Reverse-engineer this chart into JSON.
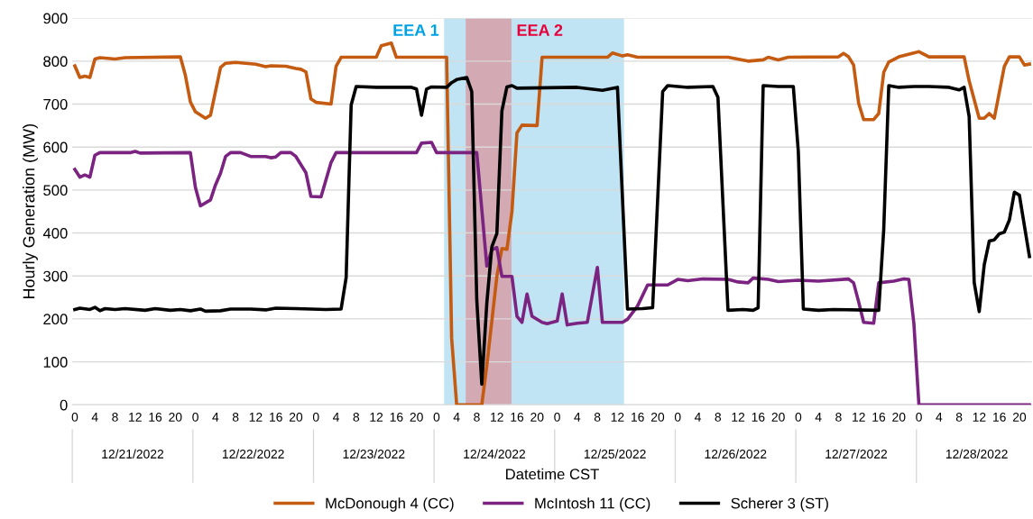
{
  "chart_data": {
    "type": "line",
    "xlabel": "Datetime CST",
    "ylabel": "Hourly Generation (MW)",
    "xlim": [
      "2022-12-20T23:30",
      "2022-12-28T22:30"
    ],
    "ylim": [
      0,
      900
    ],
    "xticks": [
      {
        "value": "2022-12-21T00:00",
        "label": "0"
      },
      {
        "value": "2022-12-21T04:00",
        "label": "4"
      },
      {
        "value": "2022-12-21T08:00",
        "label": "8"
      },
      {
        "value": "2022-12-21T12:00",
        "label": "12"
      },
      {
        "value": "2022-12-21T16:00",
        "label": "16"
      },
      {
        "value": "2022-12-21T20:00",
        "label": "20"
      },
      {
        "value": "2022-12-22T00:00",
        "label": "0"
      },
      {
        "value": "2022-12-22T04:00",
        "label": "4"
      },
      {
        "value": "2022-12-22T08:00",
        "label": "8"
      },
      {
        "value": "2022-12-22T12:00",
        "label": "12"
      },
      {
        "value": "2022-12-22T16:00",
        "label": "16"
      },
      {
        "value": "2022-12-22T20:00",
        "label": "20"
      },
      {
        "value": "2022-12-23T00:00",
        "label": "0"
      },
      {
        "value": "2022-12-23T04:00",
        "label": "4"
      },
      {
        "value": "2022-12-23T08:00",
        "label": "8"
      },
      {
        "value": "2022-12-23T12:00",
        "label": "12"
      },
      {
        "value": "2022-12-23T16:00",
        "label": "16"
      },
      {
        "value": "2022-12-23T20:00",
        "label": "20"
      },
      {
        "value": "2022-12-24T00:00",
        "label": "0"
      },
      {
        "value": "2022-12-24T04:00",
        "label": "4"
      },
      {
        "value": "2022-12-24T08:00",
        "label": "8"
      },
      {
        "value": "2022-12-24T12:00",
        "label": "12"
      },
      {
        "value": "2022-12-24T16:00",
        "label": "16"
      },
      {
        "value": "2022-12-24T20:00",
        "label": "20"
      },
      {
        "value": "2022-12-25T00:00",
        "label": "0"
      },
      {
        "value": "2022-12-25T04:00",
        "label": "4"
      },
      {
        "value": "2022-12-25T08:00",
        "label": "8"
      },
      {
        "value": "2022-12-25T12:00",
        "label": "12"
      },
      {
        "value": "2022-12-25T16:00",
        "label": "16"
      },
      {
        "value": "2022-12-25T20:00",
        "label": "20"
      },
      {
        "value": "2022-12-26T00:00",
        "label": "0"
      },
      {
        "value": "2022-12-26T04:00",
        "label": "4"
      },
      {
        "value": "2022-12-26T08:00",
        "label": "8"
      },
      {
        "value": "2022-12-26T12:00",
        "label": "12"
      },
      {
        "value": "2022-12-26T16:00",
        "label": "16"
      },
      {
        "value": "2022-12-26T20:00",
        "label": "20"
      },
      {
        "value": "2022-12-27T00:00",
        "label": "0"
      },
      {
        "value": "2022-12-27T04:00",
        "label": "4"
      },
      {
        "value": "2022-12-27T08:00",
        "label": "8"
      },
      {
        "value": "2022-12-27T12:00",
        "label": "12"
      },
      {
        "value": "2022-12-27T16:00",
        "label": "16"
      },
      {
        "value": "2022-12-27T20:00",
        "label": "20"
      },
      {
        "value": "2022-12-28T00:00",
        "label": "0"
      },
      {
        "value": "2022-12-28T04:00",
        "label": "4"
      },
      {
        "value": "2022-12-28T08:00",
        "label": "8"
      },
      {
        "value": "2022-12-28T12:00",
        "label": "12"
      },
      {
        "value": "2022-12-28T16:00",
        "label": "16"
      },
      {
        "value": "2022-12-28T20:00",
        "label": "20"
      }
    ],
    "x2lim": [
      "2022-12-20T23:30",
      "2022-12-28T22:30"
    ],
    "x2ticks": [
      {
        "value": "2022-12-21T11:30",
        "label": "12/21/2022"
      },
      {
        "value": "2022-12-22T11:30",
        "label": "12/22/2022"
      },
      {
        "value": "2022-12-23T11:30",
        "label": "12/23/2022"
      },
      {
        "value": "2022-12-24T11:30",
        "label": "12/24/2022"
      },
      {
        "value": "2022-12-25T11:30",
        "label": "12/25/2022"
      },
      {
        "value": "2022-12-26T11:30",
        "label": "12/26/2022"
      },
      {
        "value": "2022-12-27T11:30",
        "label": "12/27/2022"
      },
      {
        "value": "2022-12-28T11:30",
        "label": "12/28/2022"
      }
    ],
    "yticks": [
      0,
      100,
      200,
      300,
      400,
      500,
      600,
      700,
      800,
      900
    ],
    "grid": "y",
    "legend": "bottom",
    "marker": "none",
    "line_style": "solid",
    "bands": [
      {
        "axis": "x",
        "from": "2022-12-24T01:30",
        "to": "2022-12-25T13:18",
        "label": "EEA 1",
        "color": "#c0e4f3"
      },
      {
        "axis": "x",
        "from": "2022-12-24T05:48",
        "to": "2022-12-24T14:54",
        "label": "EEA 2",
        "color": "#d3a9b4"
      }
    ],
    "series": [
      {
        "name": "McDonough 4 (CC)",
        "color": "#c55a11",
        "x": [
          "2022-12-21T00:00",
          "2022-12-21T01:00",
          "2022-12-21T02:00",
          "2022-12-21T03:00",
          "2022-12-21T04:00",
          "2022-12-21T05:00",
          "2022-12-21T08:00",
          "2022-12-21T10:00",
          "2022-12-21T21:00",
          "2022-12-21T22:00",
          "2022-12-21T23:00",
          "2022-12-22T00:00",
          "2022-12-22T02:00",
          "2022-12-22T03:00",
          "2022-12-22T05:00",
          "2022-12-22T06:00",
          "2022-12-22T08:00",
          "2022-12-22T12:00",
          "2022-12-22T14:00",
          "2022-12-22T15:00",
          "2022-12-22T18:00",
          "2022-12-22T20:00",
          "2022-12-22T21:00",
          "2022-12-22T22:00",
          "2022-12-22T23:00",
          "2022-12-23T00:00",
          "2022-12-23T03:00",
          "2022-12-23T04:00",
          "2022-12-23T05:00",
          "2022-12-23T12:00",
          "2022-12-23T13:00",
          "2022-12-23T15:00",
          "2022-12-23T16:00",
          "2022-12-24T02:00",
          "2022-12-24T03:00",
          "2022-12-24T04:00",
          "2022-12-24T09:00",
          "2022-12-24T10:00",
          "2022-12-24T12:00",
          "2022-12-24T13:00",
          "2022-12-24T14:00",
          "2022-12-24T15:00",
          "2022-12-24T16:00",
          "2022-12-24T17:00",
          "2022-12-24T20:00",
          "2022-12-24T21:00",
          "2022-12-25T10:00",
          "2022-12-25T11:00",
          "2022-12-25T13:00",
          "2022-12-25T14:00",
          "2022-12-25T16:00",
          "2022-12-26T10:00",
          "2022-12-26T14:00",
          "2022-12-26T17:00",
          "2022-12-26T18:00",
          "2022-12-26T20:00",
          "2022-12-26T22:00",
          "2022-12-27T08:00",
          "2022-12-27T09:00",
          "2022-12-27T10:00",
          "2022-12-27T11:00",
          "2022-12-27T12:00",
          "2022-12-27T13:00",
          "2022-12-27T15:00",
          "2022-12-27T16:00",
          "2022-12-27T17:00",
          "2022-12-27T18:00",
          "2022-12-27T20:00",
          "2022-12-27T23:00",
          "2022-12-28T00:00",
          "2022-12-28T02:00",
          "2022-12-28T09:00",
          "2022-12-28T10:00",
          "2022-12-28T12:00",
          "2022-12-28T13:00",
          "2022-12-28T14:00",
          "2022-12-28T15:00",
          "2022-12-28T17:00",
          "2022-12-28T18:00",
          "2022-12-28T20:00",
          "2022-12-28T21:00",
          "2022-12-28T22:00"
        ],
        "values": [
          789,
          762,
          765,
          762,
          805,
          808,
          805,
          808,
          810,
          767,
          705,
          682,
          667,
          674,
          785,
          795,
          797,
          793,
          787,
          789,
          788,
          783,
          781,
          775,
          712,
          704,
          700,
          788,
          809,
          809,
          836,
          842,
          809,
          809,
          155,
          0,
          0,
          92,
          299,
          364,
          362,
          450,
          633,
          651,
          650,
          809,
          809,
          819,
          812,
          815,
          809,
          809,
          800,
          803,
          809,
          803,
          809,
          810,
          818,
          810,
          791,
          702,
          664,
          664,
          678,
          774,
          798,
          810,
          819,
          822,
          810,
          810,
          754,
          667,
          667,
          678,
          667,
          788,
          810,
          810,
          791,
          793
        ]
      },
      {
        "name": "McIntosh 11 (CC)",
        "color": "#7b2381",
        "x": [
          "2022-12-21T00:00",
          "2022-12-21T01:00",
          "2022-12-21T02:00",
          "2022-12-21T03:00",
          "2022-12-21T04:00",
          "2022-12-21T05:00",
          "2022-12-21T11:00",
          "2022-12-21T12:00",
          "2022-12-21T13:00",
          "2022-12-21T23:00",
          "2022-12-22T00:00",
          "2022-12-22T01:00",
          "2022-12-22T03:00",
          "2022-12-22T04:00",
          "2022-12-22T05:00",
          "2022-12-22T06:00",
          "2022-12-22T07:00",
          "2022-12-22T09:00",
          "2022-12-22T11:00",
          "2022-12-22T14:00",
          "2022-12-22T15:00",
          "2022-12-22T16:00",
          "2022-12-22T17:00",
          "2022-12-22T19:00",
          "2022-12-22T20:00",
          "2022-12-22T22:00",
          "2022-12-22T23:00",
          "2022-12-23T01:00",
          "2022-12-23T03:00",
          "2022-12-23T04:00",
          "2022-12-23T20:00",
          "2022-12-23T21:00",
          "2022-12-23T23:00",
          "2022-12-24T00:00",
          "2022-12-24T08:00",
          "2022-12-24T10:00",
          "2022-12-24T11:00",
          "2022-12-24T12:00",
          "2022-12-24T13:00",
          "2022-12-24T15:00",
          "2022-12-24T16:00",
          "2022-12-24T17:00",
          "2022-12-24T18:00",
          "2022-12-24T19:00",
          "2022-12-24T21:00",
          "2022-12-24T22:00",
          "2022-12-25T00:00",
          "2022-12-25T01:00",
          "2022-12-25T02:00",
          "2022-12-25T04:00",
          "2022-12-25T06:00",
          "2022-12-25T08:00",
          "2022-12-25T09:00",
          "2022-12-25T13:00",
          "2022-12-25T14:00",
          "2022-12-25T16:00",
          "2022-12-25T18:00",
          "2022-12-25T22:00",
          "2022-12-26T00:00",
          "2022-12-26T02:00",
          "2022-12-26T05:00",
          "2022-12-26T10:00",
          "2022-12-26T12:00",
          "2022-12-26T14:00",
          "2022-12-26T15:00",
          "2022-12-26T18:00",
          "2022-12-26T20:00",
          "2022-12-27T00:00",
          "2022-12-27T04:00",
          "2022-12-27T10:00",
          "2022-12-27T11:00",
          "2022-12-27T12:00",
          "2022-12-27T13:00",
          "2022-12-27T15:00",
          "2022-12-27T16:00",
          "2022-12-27T19:00",
          "2022-12-27T21:00",
          "2022-12-27T22:00",
          "2022-12-27T23:00",
          "2022-12-28T00:00",
          "2022-12-28T22:00"
        ],
        "values": [
          548,
          530,
          535,
          530,
          581,
          587,
          587,
          590,
          586,
          587,
          506,
          463,
          477,
          512,
          539,
          578,
          587,
          587,
          578,
          578,
          575,
          577,
          587,
          587,
          578,
          540,
          485,
          484,
          564,
          587,
          587,
          609,
          611,
          587,
          587,
          323,
          361,
          366,
          299,
          299,
          206,
          192,
          258,
          206,
          192,
          189,
          195,
          258,
          186,
          190,
          192,
          320,
          192,
          192,
          199,
          230,
          279,
          279,
          292,
          289,
          293,
          292,
          286,
          284,
          295,
          292,
          287,
          290,
          288,
          293,
          284,
          240,
          192,
          190,
          284,
          288,
          293,
          292,
          189,
          0,
          0
        ]
      },
      {
        "name": "Scherer 3 (ST)",
        "color": "#000000",
        "x": [
          "2022-12-21T00:00",
          "2022-12-21T01:00",
          "2022-12-21T03:00",
          "2022-12-21T04:00",
          "2022-12-21T05:00",
          "2022-12-21T06:00",
          "2022-12-21T08:00",
          "2022-12-21T10:00",
          "2022-12-21T14:00",
          "2022-12-21T16:00",
          "2022-12-21T19:00",
          "2022-12-21T21:00",
          "2022-12-21T23:00",
          "2022-12-22T01:00",
          "2022-12-22T02:00",
          "2022-12-22T05:00",
          "2022-12-22T07:00",
          "2022-12-22T11:00",
          "2022-12-22T14:00",
          "2022-12-22T16:00",
          "2022-12-22T20:00",
          "2022-12-22T23:00",
          "2022-12-23T02:00",
          "2022-12-23T05:00",
          "2022-12-23T06:00",
          "2022-12-23T07:00",
          "2022-12-23T08:00",
          "2022-12-23T12:00",
          "2022-12-23T19:00",
          "2022-12-23T20:00",
          "2022-12-23T21:00",
          "2022-12-23T22:00",
          "2022-12-23T23:00",
          "2022-12-24T02:00",
          "2022-12-24T03:00",
          "2022-12-24T04:00",
          "2022-12-24T06:00",
          "2022-12-24T07:00",
          "2022-12-24T08:00",
          "2022-12-24T09:00",
          "2022-12-24T10:00",
          "2022-12-24T11:00",
          "2022-12-24T12:00",
          "2022-12-24T13:00",
          "2022-12-24T14:00",
          "2022-12-24T15:00",
          "2022-12-24T16:00",
          "2022-12-25T04:00",
          "2022-12-25T09:00",
          "2022-12-25T12:00",
          "2022-12-25T14:00",
          "2022-12-25T17:00",
          "2022-12-25T19:00",
          "2022-12-25T21:00",
          "2022-12-25T22:00",
          "2022-12-26T02:00",
          "2022-12-26T07:00",
          "2022-12-26T08:00",
          "2022-12-26T10:00",
          "2022-12-26T13:00",
          "2022-12-26T15:00",
          "2022-12-26T16:00",
          "2022-12-26T17:00",
          "2022-12-26T20:00",
          "2022-12-26T23:00",
          "2022-12-27T00:00",
          "2022-12-27T01:00",
          "2022-12-27T04:00",
          "2022-12-27T07:00",
          "2022-12-27T16:00",
          "2022-12-27T17:00",
          "2022-12-27T18:00",
          "2022-12-27T20:00",
          "2022-12-27T23:00",
          "2022-12-28T02:00",
          "2022-12-28T06:00",
          "2022-12-28T08:00",
          "2022-12-28T09:00",
          "2022-12-28T10:00",
          "2022-12-28T11:00",
          "2022-12-28T12:00",
          "2022-12-28T13:00",
          "2022-12-28T14:00",
          "2022-12-28T15:00",
          "2022-12-28T16:00",
          "2022-12-28T17:00",
          "2022-12-28T18:00",
          "2022-12-28T19:00",
          "2022-12-28T20:00",
          "2022-12-28T22:00"
        ],
        "values": [
          222,
          225,
          222,
          227,
          219,
          224,
          222,
          224,
          220,
          224,
          220,
          222,
          219,
          223,
          218,
          219,
          223,
          223,
          221,
          225,
          224,
          223,
          222,
          223,
          296,
          698,
          741,
          739,
          739,
          735,
          674,
          735,
          740,
          739,
          750,
          757,
          762,
          729,
          244,
          48,
          237,
          368,
          399,
          684,
          740,
          743,
          737,
          739,
          732,
          739,
          223,
          224,
          226,
          729,
          743,
          739,
          741,
          716,
          220,
          222,
          220,
          226,
          743,
          741,
          741,
          589,
          223,
          220,
          222,
          220,
          409,
          743,
          739,
          741,
          741,
          739,
          733,
          739,
          671,
          285,
          217,
          326,
          381,
          384,
          398,
          402,
          430,
          495,
          488,
          345
        ]
      }
    ]
  }
}
